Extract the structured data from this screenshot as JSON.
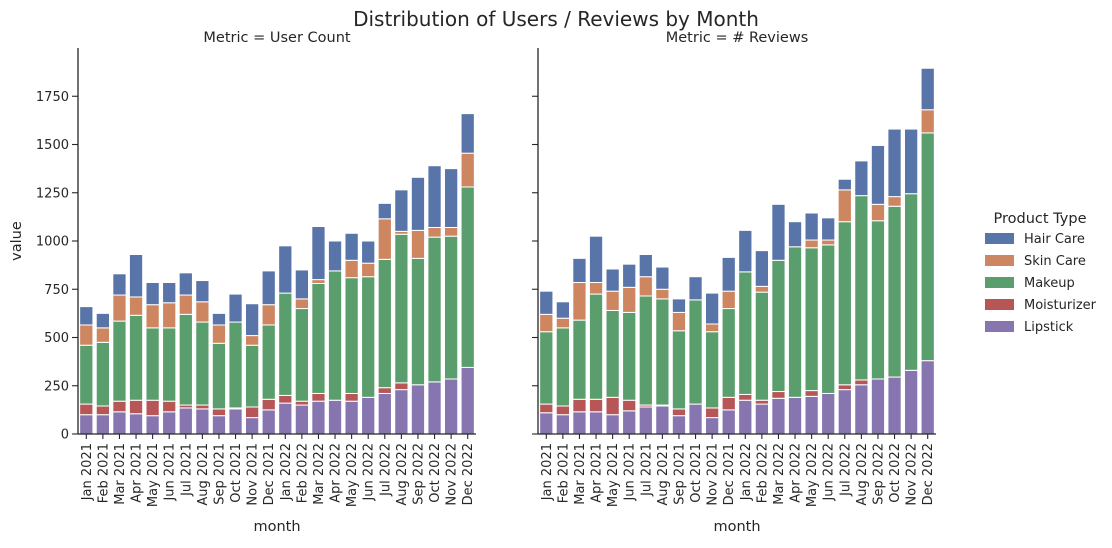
{
  "colors": {
    "Hair Care": "#5874a8",
    "Skin Care": "#cd8660",
    "Makeup": "#5b9e6d",
    "Moisturizer": "#b75657",
    "Lipstick": "#8775b0"
  },
  "chart_data": {
    "type": "bar",
    "stacked": true,
    "title": "Distribution of Users / Reviews by Month",
    "ylabel": "value",
    "ylim": [
      0,
      2000
    ],
    "yticks": [
      0,
      250,
      500,
      750,
      1000,
      1250,
      1500,
      1750
    ],
    "shared_y": true,
    "legend": {
      "title": "Product Type",
      "placement": "right",
      "entries": [
        "Hair Care",
        "Skin Care",
        "Makeup",
        "Moisturizer",
        "Lipstick"
      ]
    },
    "stack_order_bottom_to_top": [
      "Lipstick",
      "Moisturizer",
      "Makeup",
      "Skin Care",
      "Hair Care"
    ],
    "panels": [
      {
        "title": "Metric = User Count",
        "xlabel": "month",
        "categories": [
          "Jan 2021",
          "Feb 2021",
          "Mar 2021",
          "Apr 2021",
          "May 2021",
          "Jun 2021",
          "Jul 2021",
          "Aug 2021",
          "Sep 2021",
          "Oct 2021",
          "Nov 2021",
          "Dec 2021",
          "Jan 2022",
          "Feb 2022",
          "Mar 2022",
          "Apr 2022",
          "May 2022",
          "Jun 2022",
          "Jul 2022",
          "Aug 2022",
          "Sep 2022",
          "Oct 2022",
          "Nov 2022",
          "Dec 2022"
        ],
        "series": [
          {
            "name": "Lipstick",
            "values": [
              100,
              100,
              115,
              105,
              95,
              115,
              135,
              130,
              95,
              130,
              85,
              125,
              160,
              150,
              170,
              175,
              170,
              190,
              210,
              230,
              255,
              270,
              285,
              345
            ]
          },
          {
            "name": "Moisturizer",
            "values": [
              55,
              45,
              55,
              70,
              80,
              55,
              15,
              20,
              35,
              5,
              55,
              55,
              40,
              20,
              40,
              0,
              40,
              0,
              30,
              35,
              0,
              0,
              0,
              0
            ]
          },
          {
            "name": "Makeup",
            "values": [
              305,
              330,
              415,
              440,
              375,
              380,
              470,
              430,
              340,
              445,
              320,
              385,
              530,
              480,
              570,
              670,
              600,
              625,
              665,
              770,
              655,
              750,
              740,
              935
            ]
          },
          {
            "name": "Skin Care",
            "values": [
              105,
              75,
              135,
              95,
              120,
              130,
              100,
              105,
              95,
              0,
              50,
              105,
              0,
              50,
              20,
              0,
              90,
              70,
              210,
              15,
              145,
              50,
              45,
              175
            ]
          },
          {
            "name": "Hair Care",
            "values": [
              95,
              75,
              110,
              220,
              115,
              105,
              115,
              110,
              60,
              145,
              165,
              175,
              245,
              150,
              275,
              155,
              140,
              115,
              80,
              215,
              275,
              320,
              305,
              205
            ]
          }
        ]
      },
      {
        "title": "Metric = # Reviews",
        "xlabel": "month",
        "categories": [
          "Jan 2021",
          "Feb 2021",
          "Mar 2021",
          "Apr 2021",
          "May 2021",
          "Jun 2021",
          "Jul 2021",
          "Aug 2021",
          "Sep 2021",
          "Oct 2021",
          "Nov 2021",
          "Dec 2021",
          "Jan 2022",
          "Feb 2022",
          "Mar 2022",
          "Apr 2022",
          "May 2022",
          "Jun 2022",
          "Jul 2022",
          "Aug 2022",
          "Sep 2022",
          "Oct 2022",
          "Nov 2022",
          "Dec 2022"
        ],
        "series": [
          {
            "name": "Lipstick",
            "values": [
              110,
              100,
              115,
              115,
              100,
              120,
              140,
              145,
              95,
              155,
              85,
              125,
              175,
              155,
              185,
              190,
              195,
              210,
              230,
              255,
              285,
              295,
              330,
              380
            ]
          },
          {
            "name": "Moisturizer",
            "values": [
              45,
              45,
              65,
              65,
              90,
              55,
              10,
              5,
              35,
              0,
              50,
              65,
              30,
              20,
              35,
              0,
              30,
              0,
              25,
              25,
              0,
              0,
              0,
              0
            ]
          },
          {
            "name": "Makeup",
            "values": [
              375,
              405,
              410,
              545,
              450,
              455,
              565,
              550,
              405,
              540,
              395,
              460,
              635,
              560,
              680,
              780,
              740,
              770,
              845,
              955,
              820,
              885,
              915,
              1180
            ]
          },
          {
            "name": "Skin Care",
            "values": [
              90,
              50,
              195,
              60,
              100,
              130,
              100,
              50,
              95,
              0,
              40,
              90,
              0,
              30,
              0,
              0,
              40,
              25,
              165,
              0,
              85,
              50,
              0,
              120
            ]
          },
          {
            "name": "Hair Care",
            "values": [
              120,
              85,
              125,
              240,
              115,
              120,
              115,
              115,
              70,
              120,
              160,
              175,
              215,
              185,
              290,
              130,
              140,
              115,
              55,
              180,
              305,
              350,
              335,
              215
            ]
          }
        ]
      }
    ]
  }
}
